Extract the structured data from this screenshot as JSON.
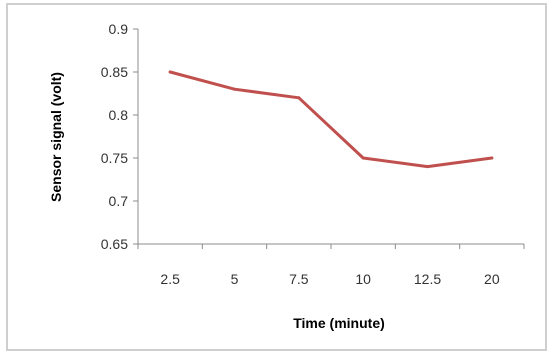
{
  "chart_data": {
    "type": "line",
    "title": "",
    "xlabel": "Time (minute)",
    "ylabel": "Sensor signal (volt)",
    "categories": [
      "2.5",
      "5",
      "7.5",
      "10",
      "12.5",
      "20"
    ],
    "series": [
      {
        "values": [
          0.85,
          0.83,
          0.82,
          0.75,
          0.74,
          0.75
        ],
        "color": "#c0504d"
      }
    ],
    "ylim": [
      0.65,
      0.9
    ],
    "yticks": [
      "0.65",
      "0.7",
      "0.75",
      "0.8",
      "0.85",
      "0.9"
    ],
    "grid": false,
    "legend": "none",
    "axis_color": "#8c8c8c"
  }
}
